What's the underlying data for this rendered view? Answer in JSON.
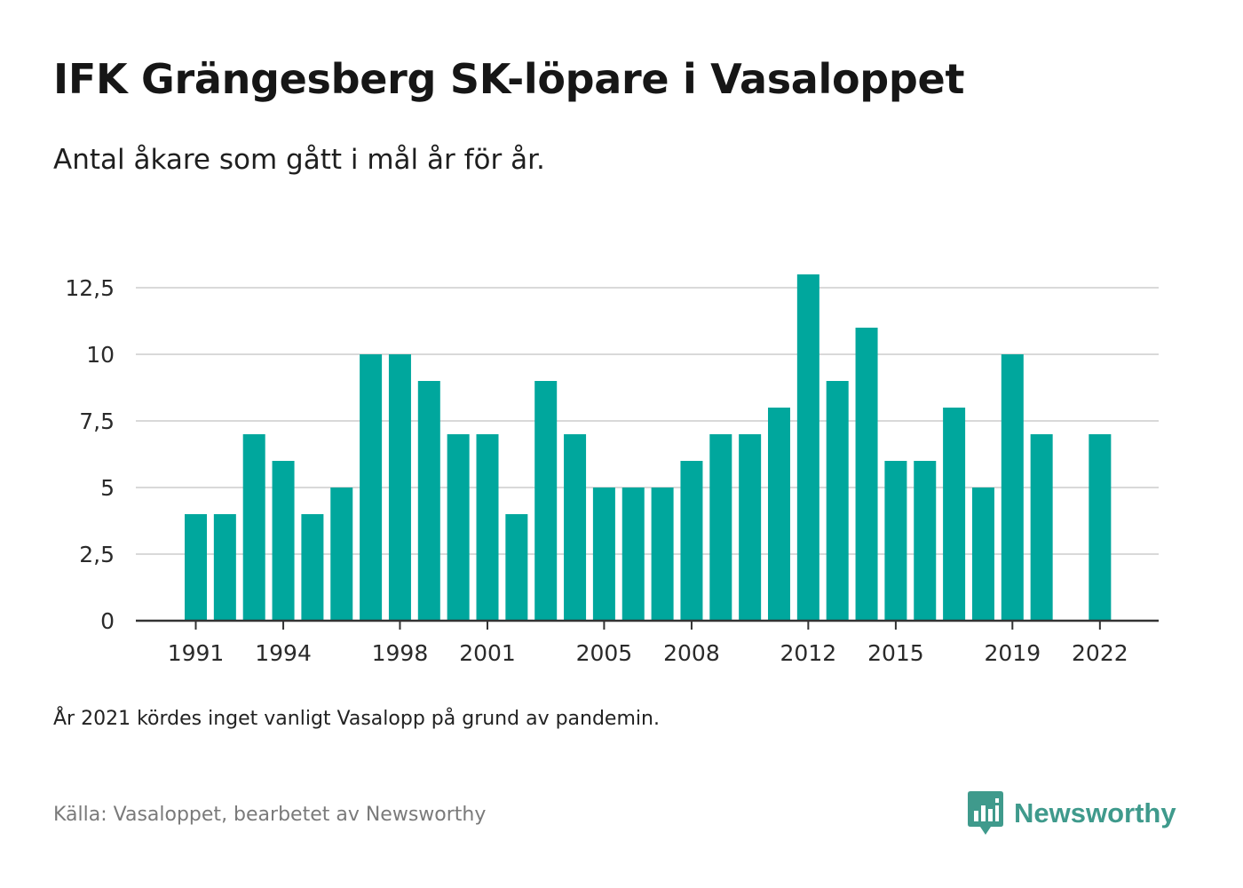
{
  "header": {
    "title": "IFK Grängesberg SK-löpare i Vasaloppet",
    "subtitle": "Antal åkare som gått i mål år för år."
  },
  "footer": {
    "note": "År 2021 kördes inget vanligt Vasalopp på grund av pandemin.",
    "source": "Källa: Vasaloppet, bearbetet av Newsworthy",
    "brand": "Newsworthy",
    "brand_icon": "newsworthy-logo-icon"
  },
  "colors": {
    "bar": "#00a79d",
    "brand": "#3f9a8c",
    "grid": "#d9d9d9",
    "axis": "#333333"
  },
  "chart_data": {
    "type": "bar",
    "title": "IFK Grängesberg SK-löpare i Vasaloppet",
    "subtitle": "Antal åkare som gått i mål år för år.",
    "xlabel": "",
    "ylabel": "",
    "x": [
      1991,
      1992,
      1993,
      1994,
      1995,
      1996,
      1997,
      1998,
      1999,
      2000,
      2001,
      2002,
      2003,
      2004,
      2005,
      2006,
      2007,
      2008,
      2009,
      2010,
      2011,
      2012,
      2013,
      2014,
      2015,
      2016,
      2017,
      2018,
      2019,
      2020,
      2021,
      2022
    ],
    "values": [
      4,
      4,
      7,
      6,
      4,
      5,
      10,
      10,
      9,
      7,
      7,
      4,
      9,
      7,
      5,
      5,
      5,
      6,
      7,
      7,
      8,
      13,
      9,
      11,
      6,
      6,
      8,
      5,
      10,
      7,
      null,
      7
    ],
    "x_tick_labels": [
      "1991",
      "1994",
      "1998",
      "2001",
      "2005",
      "2008",
      "2012",
      "2015",
      "2019",
      "2022"
    ],
    "y_ticks": [
      0,
      2.5,
      5,
      7.5,
      10,
      12.5
    ],
    "y_tick_labels": [
      "0",
      "2,5",
      "5",
      "7,5",
      "10",
      "12,5"
    ],
    "ylim": [
      0,
      13
    ],
    "grid": true,
    "legend": "none"
  }
}
